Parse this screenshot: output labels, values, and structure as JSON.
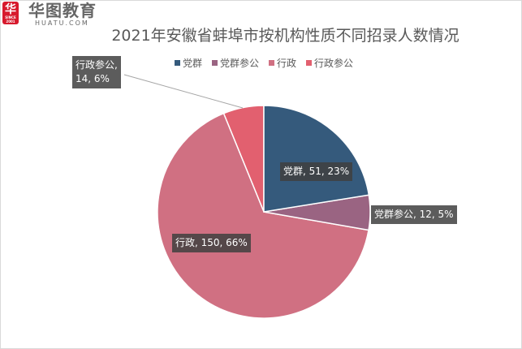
{
  "logo": {
    "mark": "华",
    "since": "SINCE 2001",
    "cn": "华图教育",
    "en": "HUATU.COM"
  },
  "chart_data": {
    "type": "pie",
    "title": "2021年安徽省蚌埠市按机构性质不同招录人数情况",
    "legend_position": "top",
    "categories": [
      "党群",
      "党群参公",
      "行政",
      "行政参公"
    ],
    "values": [
      51,
      12,
      150,
      14
    ],
    "percents": [
      "23%",
      "5%",
      "66%",
      "6%"
    ],
    "colors": [
      "#355a7c",
      "#9a6482",
      "#d07082",
      "#e2606f"
    ],
    "data_labels": [
      "党群, 51, 23%",
      "党群参公, 12, 5%",
      "行政, 150, 66%",
      "行政参公,\n14, 6%"
    ],
    "start_angle": "top",
    "direction": "clockwise"
  }
}
